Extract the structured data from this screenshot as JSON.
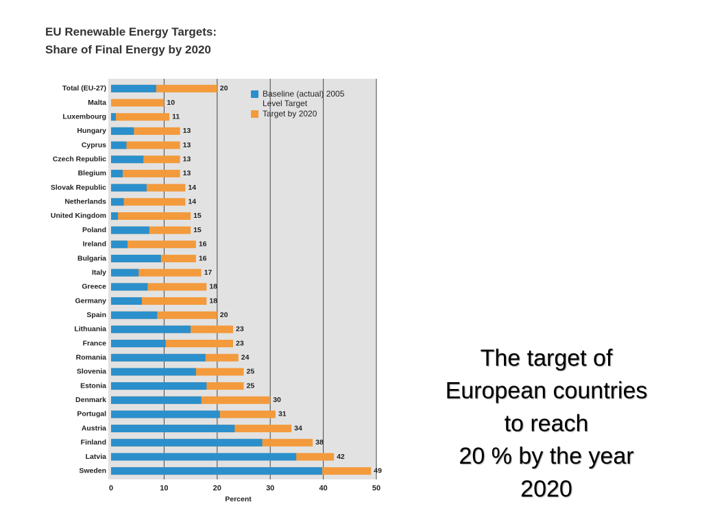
{
  "chart_data": {
    "type": "bar",
    "orientation": "horizontal",
    "title": "EU Renewable Energy Targets:",
    "subtitle": "Share of Final Energy by 2020",
    "xlabel": "Percent",
    "categories": [
      "Total (EU-27)",
      "Malta",
      "Luxembourg",
      "Hungary",
      "Cyprus",
      "Czech Republic",
      "Blegium",
      "Slovak Republic",
      "Netherlands",
      "United Kingdom",
      "Poland",
      "Ireland",
      "Bulgaria",
      "Italy",
      "Greece",
      "Germany",
      "Spain",
      "Lithuania",
      "France",
      "Romania",
      "Slovenia",
      "Estonia",
      "Denmark",
      "Portugal",
      "Austria",
      "Finland",
      "Latvia",
      "Sweden"
    ],
    "series": [
      {
        "name": "Baseline (actual) 2005 Level Target",
        "color": "#2b8fcb",
        "values": [
          8.5,
          0,
          0.9,
          4.3,
          2.9,
          6.1,
          2.2,
          6.7,
          2.4,
          1.3,
          7.2,
          3.1,
          9.4,
          5.2,
          6.9,
          5.8,
          8.7,
          15,
          10.3,
          17.8,
          16,
          18,
          17,
          20.5,
          23.3,
          28.5,
          34.9,
          39.8
        ]
      },
      {
        "name": "Target by 2020",
        "color": "#f39a3c",
        "values": [
          20,
          10,
          11,
          13,
          13,
          13,
          13,
          14,
          14,
          15,
          15,
          16,
          16,
          17,
          18,
          18,
          20,
          23,
          23,
          24,
          25,
          25,
          30,
          31,
          34,
          38,
          42,
          49
        ]
      }
    ],
    "xlim": [
      0,
      50
    ],
    "xticks": [
      0,
      10,
      20,
      30,
      40,
      50
    ],
    "grid": true,
    "legend": "upper right"
  },
  "side_text": [
    "The target of",
    "European countries",
    "to reach",
    "20 % by the year",
    "2020"
  ]
}
